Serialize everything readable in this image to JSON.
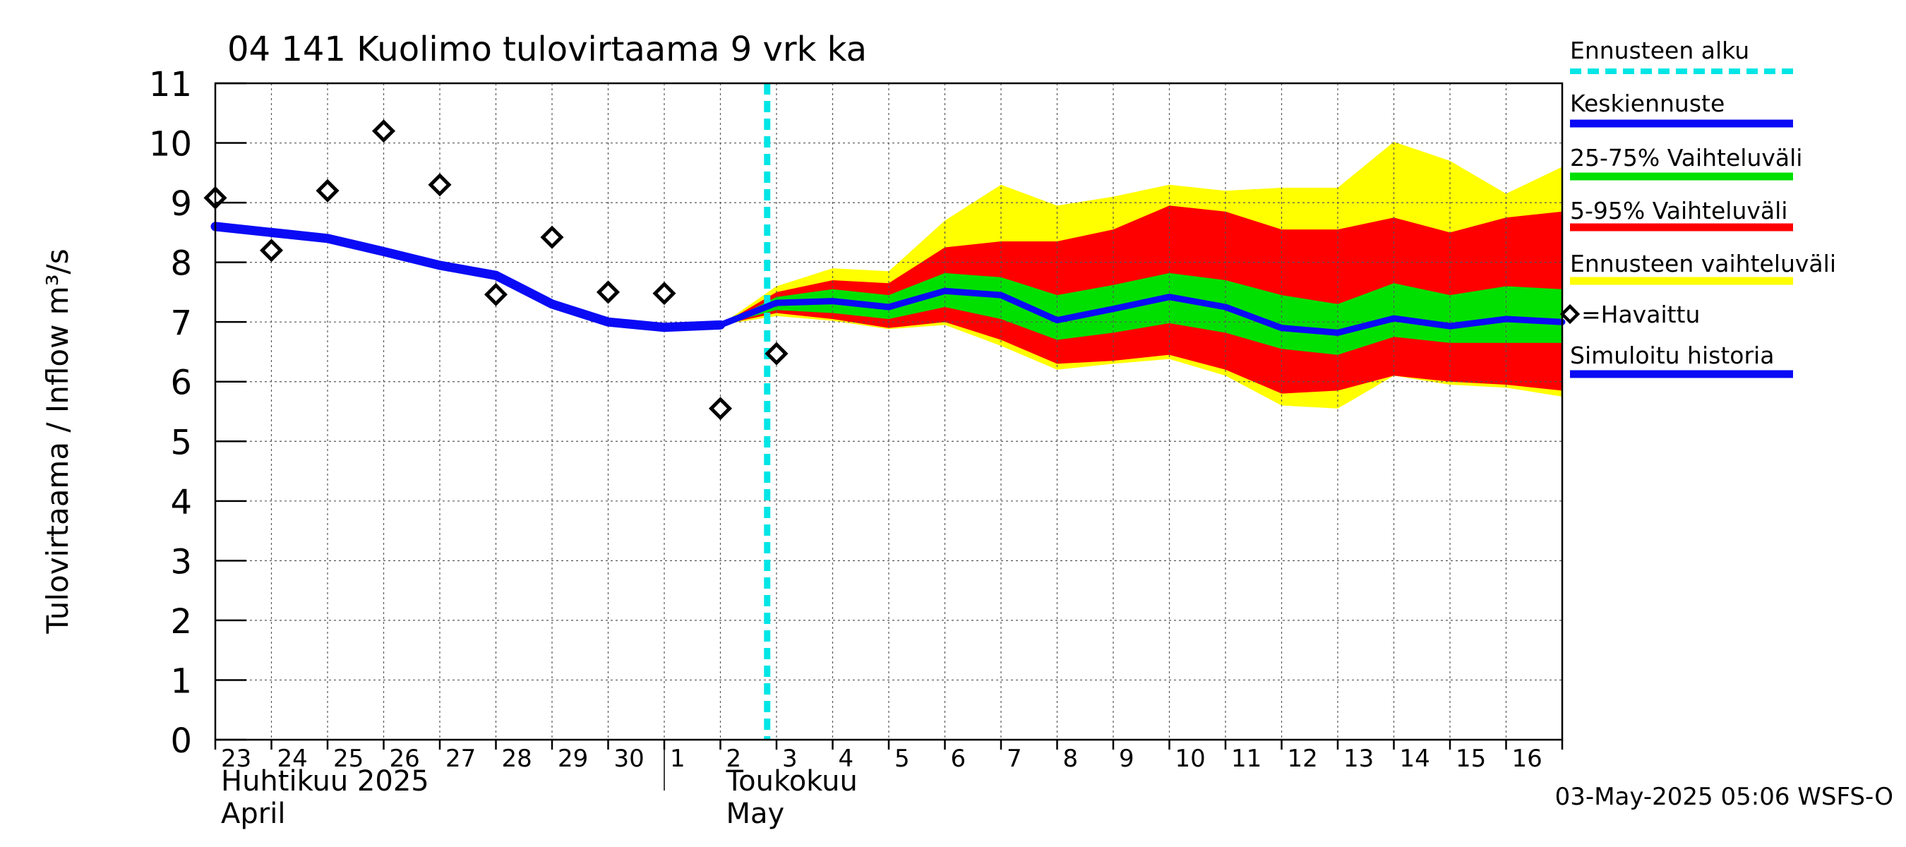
{
  "chart_data": {
    "type": "area",
    "title": "04 141 Kuolimo tulovirtaama 9 vrk ka",
    "ylabel": "Tulovirtaama / Inflow    m³/s",
    "ylim": [
      0,
      11
    ],
    "y_ticks": [
      "0",
      "1",
      "2",
      "3",
      "4",
      "5",
      "6",
      "7",
      "8",
      "9",
      "10",
      "11"
    ],
    "x_ticks": [
      "23",
      "24",
      "25",
      "26",
      "27",
      "28",
      "29",
      "30",
      "1",
      "2",
      "3",
      "4",
      "5",
      "6",
      "7",
      "8",
      "9",
      "10",
      "11",
      "12",
      "13",
      "14",
      "15",
      "16"
    ],
    "month_labels": [
      {
        "fi": "Huhtikuu  2025",
        "en": "April"
      },
      {
        "fi": "Toukokuu",
        "en": "May"
      }
    ],
    "x_range": [
      "2025-04-23",
      "2025-05-17"
    ],
    "grid": true,
    "forecast_start": "2025-05-02T20:00",
    "legend": [
      {
        "label": "Ennusteen alku",
        "color": "#00e5e5",
        "style": "dashed"
      },
      {
        "label": "Keskiennuste",
        "color": "#0a0af5",
        "style": "line"
      },
      {
        "label": "25-75% Vaihteluväli",
        "color": "#00e000",
        "style": "line"
      },
      {
        "label": "5-95% Vaihteluväli",
        "color": "#ff0000",
        "style": "line"
      },
      {
        "label": "Ennusteen vaihteluväli",
        "color": "#ffff00",
        "style": "line"
      },
      {
        "label": "=Havaittu",
        "color": "#000000",
        "style": "marker"
      },
      {
        "label": "Simuloitu historia",
        "color": "#0a0af5",
        "style": "line"
      }
    ],
    "footer": "03-May-2025 05:06 WSFS-O",
    "series": [
      {
        "name": "Simuloitu historia",
        "x": [
          "2025-04-23",
          "2025-04-24",
          "2025-04-25",
          "2025-04-26",
          "2025-04-27",
          "2025-04-28",
          "2025-04-29",
          "2025-04-30",
          "2025-05-01",
          "2025-05-02"
        ],
        "values": [
          8.6,
          8.5,
          8.4,
          8.18,
          7.95,
          7.78,
          7.3,
          7.0,
          6.91,
          6.95
        ]
      },
      {
        "name": "Keskiennuste",
        "x": [
          "2025-05-02",
          "2025-05-03",
          "2025-05-04",
          "2025-05-05",
          "2025-05-06",
          "2025-05-07",
          "2025-05-08",
          "2025-05-09",
          "2025-05-10",
          "2025-05-11",
          "2025-05-12",
          "2025-05-13",
          "2025-05-14",
          "2025-05-15",
          "2025-05-16",
          "2025-05-17"
        ],
        "values": [
          6.95,
          7.32,
          7.35,
          7.25,
          7.52,
          7.45,
          7.03,
          7.22,
          7.42,
          7.25,
          6.9,
          6.82,
          7.06,
          6.93,
          7.05,
          7.0
        ]
      },
      {
        "name": "=Havaittu",
        "x": [
          "2025-04-23",
          "2025-04-24",
          "2025-04-25",
          "2025-04-26",
          "2025-04-27",
          "2025-04-28",
          "2025-04-29",
          "2025-04-30",
          "2025-05-01",
          "2025-05-02",
          "2025-05-03"
        ],
        "values": [
          9.08,
          8.2,
          9.2,
          10.2,
          9.3,
          7.46,
          8.42,
          7.5,
          7.48,
          5.55,
          6.47
        ]
      }
    ],
    "bands": [
      {
        "name": "Ennusteen vaihteluväli",
        "x": [
          "2025-05-02",
          "2025-05-03",
          "2025-05-04",
          "2025-05-05",
          "2025-05-06",
          "2025-05-07",
          "2025-05-08",
          "2025-05-09",
          "2025-05-10",
          "2025-05-11",
          "2025-05-12",
          "2025-05-13",
          "2025-05-14",
          "2025-05-15",
          "2025-05-16",
          "2025-05-17"
        ],
        "upper": [
          6.95,
          7.6,
          7.9,
          7.85,
          8.7,
          9.3,
          8.95,
          9.1,
          9.3,
          9.2,
          9.25,
          9.25,
          10.02,
          9.7,
          9.15,
          9.6
        ],
        "lower": [
          6.95,
          7.1,
          7.02,
          6.88,
          6.95,
          6.6,
          6.2,
          6.3,
          6.38,
          6.1,
          5.6,
          5.55,
          6.1,
          5.95,
          5.9,
          5.75
        ]
      },
      {
        "name": "5-95% Vaihteluväli",
        "x": [
          "2025-05-02",
          "2025-05-03",
          "2025-05-04",
          "2025-05-05",
          "2025-05-06",
          "2025-05-07",
          "2025-05-08",
          "2025-05-09",
          "2025-05-10",
          "2025-05-11",
          "2025-05-12",
          "2025-05-13",
          "2025-05-14",
          "2025-05-15",
          "2025-05-16",
          "2025-05-17"
        ],
        "upper": [
          6.95,
          7.5,
          7.7,
          7.65,
          8.25,
          8.35,
          8.35,
          8.55,
          8.95,
          8.85,
          8.55,
          8.55,
          8.75,
          8.5,
          8.75,
          8.85
        ],
        "lower": [
          6.95,
          7.15,
          7.05,
          6.9,
          7.0,
          6.7,
          6.3,
          6.35,
          6.45,
          6.2,
          5.8,
          5.85,
          6.1,
          6.0,
          5.95,
          5.85
        ]
      },
      {
        "name": "25-75% Vaihteluväli",
        "x": [
          "2025-05-02",
          "2025-05-03",
          "2025-05-04",
          "2025-05-05",
          "2025-05-06",
          "2025-05-07",
          "2025-05-08",
          "2025-05-09",
          "2025-05-10",
          "2025-05-11",
          "2025-05-12",
          "2025-05-13",
          "2025-05-14",
          "2025-05-15",
          "2025-05-16",
          "2025-05-17"
        ],
        "upper": [
          6.95,
          7.42,
          7.55,
          7.45,
          7.82,
          7.75,
          7.45,
          7.62,
          7.82,
          7.7,
          7.45,
          7.3,
          7.65,
          7.45,
          7.6,
          7.55
        ],
        "lower": [
          6.95,
          7.2,
          7.15,
          7.05,
          7.25,
          7.05,
          6.7,
          6.82,
          6.98,
          6.82,
          6.55,
          6.45,
          6.75,
          6.65,
          6.65,
          6.65
        ]
      }
    ]
  }
}
